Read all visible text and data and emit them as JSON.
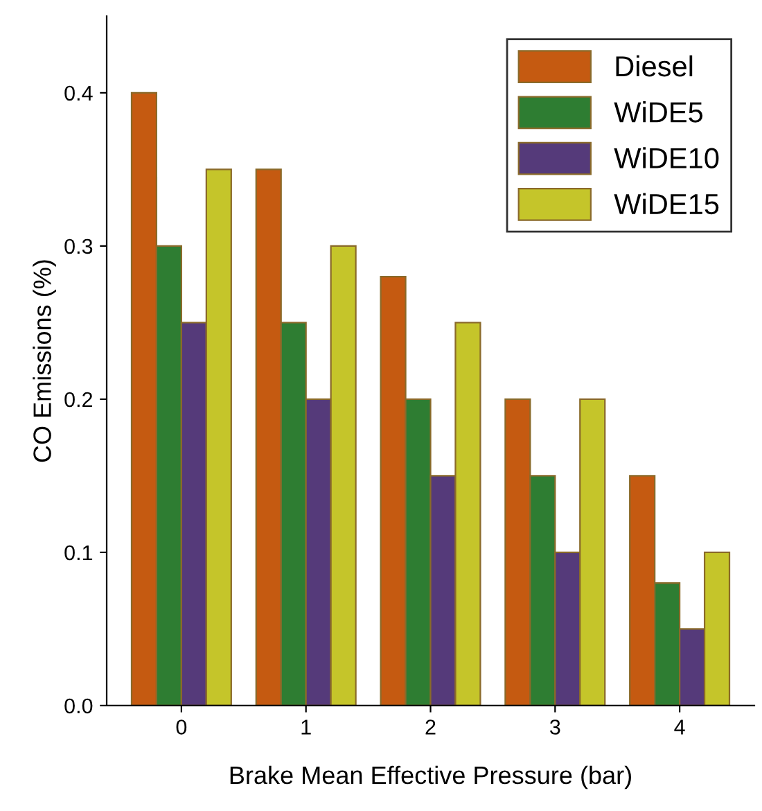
{
  "chart_data": {
    "type": "bar",
    "xlabel": "Brake Mean Effective Pressure (bar)",
    "ylabel": "CO Emissions (%)",
    "categories": [
      "0",
      "1",
      "2",
      "3",
      "4"
    ],
    "series": [
      {
        "name": "Diesel",
        "color": "#c55a11",
        "values": [
          0.4,
          0.35,
          0.28,
          0.2,
          0.15
        ]
      },
      {
        "name": "WiDE5",
        "color": "#2e7d32",
        "values": [
          0.3,
          0.25,
          0.2,
          0.15,
          0.08
        ]
      },
      {
        "name": "WiDE10",
        "color": "#553a7a",
        "values": [
          0.25,
          0.2,
          0.15,
          0.1,
          0.05
        ]
      },
      {
        "name": "WiDE15",
        "color": "#c5c52a",
        "values": [
          0.35,
          0.3,
          0.25,
          0.2,
          0.1
        ]
      }
    ],
    "ylim": [
      0.0,
      0.45
    ],
    "yticks": [
      {
        "value": 0,
        "label": "0.0"
      },
      0.1,
      0.2,
      0.3,
      0.4
    ],
    "grid": false,
    "legend": "top right"
  }
}
